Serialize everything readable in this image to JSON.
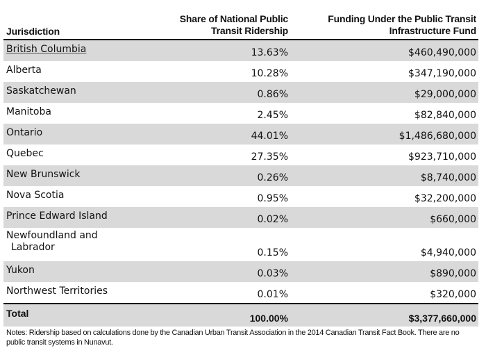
{
  "header": {
    "jurisdiction": "Jurisdiction",
    "share_line1": "Share of National Public",
    "share_line2": "Transit Ridership",
    "funding_line1": "Funding Under the Public Transit",
    "funding_line2": "Infrastructure Fund"
  },
  "rows": [
    {
      "name": "British Columbia",
      "share": "13.63%",
      "funding": "$460,490,000"
    },
    {
      "name": "Alberta",
      "share": "10.28%",
      "funding": "$347,190,000"
    },
    {
      "name": "Saskatchewan",
      "share": "0.86%",
      "funding": "$29,000,000"
    },
    {
      "name": "Manitoba",
      "share": "2.45%",
      "funding": "$82,840,000"
    },
    {
      "name": "Ontario",
      "share": "44.01%",
      "funding": "$1,486,680,000"
    },
    {
      "name": "Quebec",
      "share": "27.35%",
      "funding": "$923,710,000"
    },
    {
      "name": "New Brunswick",
      "share": "0.26%",
      "funding": "$8,740,000"
    },
    {
      "name": "Nova Scotia",
      "share": "0.95%",
      "funding": "$32,200,000"
    },
    {
      "name": "Prince Edward Island",
      "share": "0.02%",
      "funding": "$660,000"
    },
    {
      "name": "Newfoundland and",
      "name2": "Labrador",
      "share": "0.15%",
      "funding": "$4,940,000"
    },
    {
      "name": "Yukon",
      "share": "0.03%",
      "funding": "$890,000"
    },
    {
      "name": "Northwest Territories",
      "share": "0.01%",
      "funding": "$320,000"
    }
  ],
  "total": {
    "name": "Total",
    "share": "100.00%",
    "funding": "$3,377,660,000"
  },
  "notes": "Notes: Ridership based on calculations done by the Canadian Urban Transit Association in the 2014 Canadian Transit Fact Book. There are no public transit systems in Nunavut."
}
